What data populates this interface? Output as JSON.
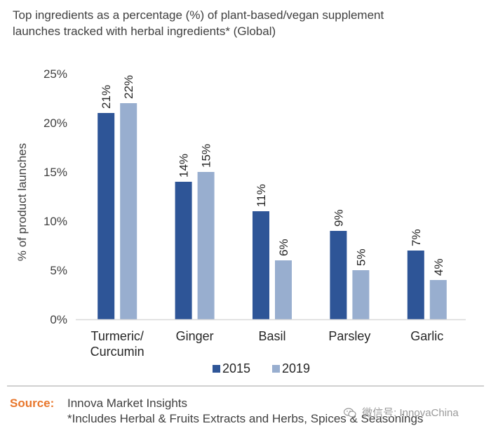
{
  "title_lines": [
    "Top ingredients as a percentage (%) of plant-based/vegan supplement",
    "launches tracked with herbal ingredients* (Global)"
  ],
  "source": {
    "label": "Source:",
    "line1": "Innova Market Insights",
    "line2": "*Includes Herbal & Fruits Extracts and Herbs, Spices & Seasonings"
  },
  "watermark": {
    "text": "微信号: InnovaChina",
    "icon": "wechat-icon"
  },
  "colors": {
    "series_2015": "#2e5597",
    "series_2019": "#98aecf",
    "axis": "#d9d9d9"
  },
  "chart_data": {
    "type": "bar",
    "title": "Top ingredients as a percentage (%) of plant-based/vegan supplement launches tracked with herbal ingredients* (Global)",
    "ylabel": "% of product launches",
    "xlabel": "",
    "ylim": [
      0,
      25
    ],
    "yticks": [
      "0%",
      "5%",
      "10%",
      "15%",
      "20%",
      "25%"
    ],
    "ytick_values": [
      0,
      5,
      10,
      15,
      20,
      25
    ],
    "categories": [
      [
        "Turmeric/",
        "Curcumin"
      ],
      [
        "Ginger"
      ],
      [
        "Basil"
      ],
      [
        "Parsley"
      ],
      [
        "Garlic"
      ]
    ],
    "series": [
      {
        "name": "2015",
        "values": [
          21,
          14,
          11,
          9,
          7
        ],
        "labels": [
          "21%",
          "14%",
          "11%",
          "9%",
          "7%"
        ],
        "color": "#2e5597"
      },
      {
        "name": "2019",
        "values": [
          22,
          15,
          6,
          5,
          4
        ],
        "labels": [
          "22%",
          "15%",
          "6%",
          "5%",
          "4%"
        ],
        "color": "#98aecf"
      }
    ],
    "grid": false,
    "legend_position": "bottom"
  }
}
